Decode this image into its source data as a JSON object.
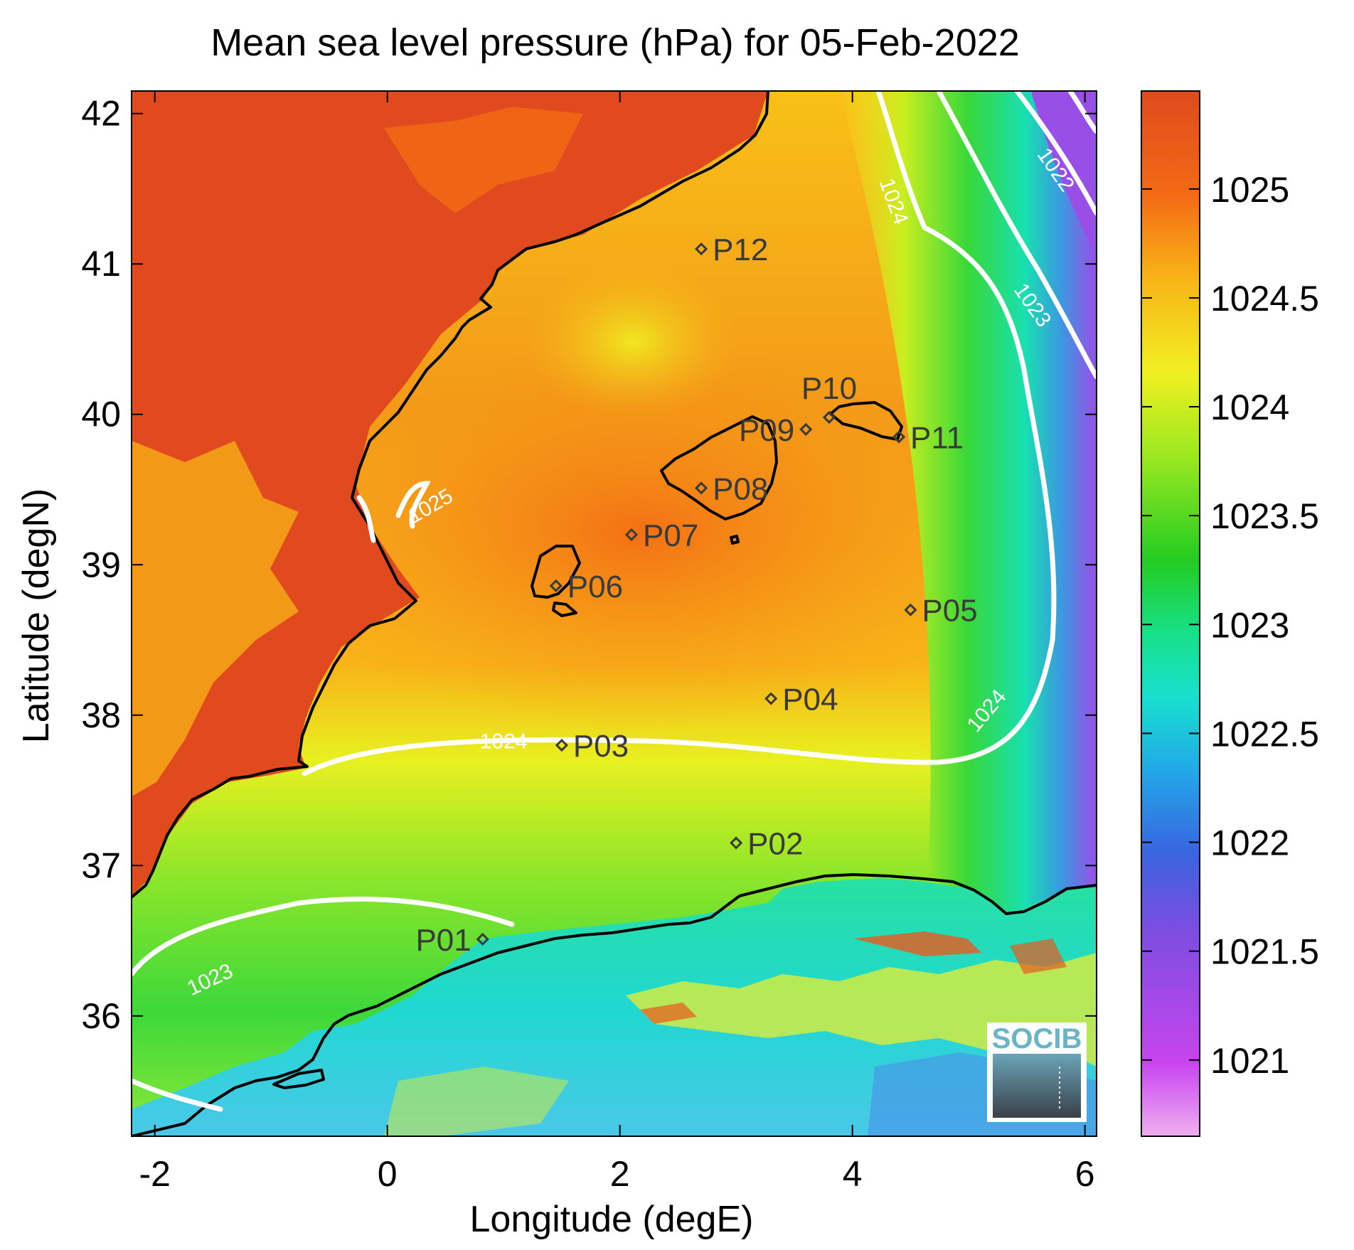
{
  "title": "Mean sea level pressure (hPa) for 05-Feb-2022",
  "xlabel": "Longitude (degE)",
  "ylabel": "Latitude (degN)",
  "x_ticks": [
    "-2",
    "0",
    "2",
    "4",
    "6"
  ],
  "y_ticks": [
    "36",
    "37",
    "38",
    "39",
    "40",
    "41",
    "42"
  ],
  "colorbar": {
    "ticks": [
      "1021",
      "1021.5",
      "1022",
      "1022.5",
      "1023",
      "1023.5",
      "1024",
      "1024.5",
      "1025"
    ],
    "range": [
      1020.65,
      1025.45
    ],
    "colormap": [
      "#f0b0f0",
      "#c844f0",
      "#7a4ee0",
      "#3a64e0",
      "#22a8e8",
      "#18e0d0",
      "#18e08a",
      "#22cc22",
      "#9ae820",
      "#f0f020",
      "#f8b418",
      "#f46a14",
      "#e04a1e"
    ]
  },
  "stations": [
    {
      "name": "P01",
      "lon": 0.82,
      "lat": 36.51
    },
    {
      "name": "P02",
      "lon": 3.0,
      "lat": 37.15
    },
    {
      "name": "P03",
      "lon": 1.5,
      "lat": 37.8
    },
    {
      "name": "P04",
      "lon": 3.3,
      "lat": 38.11
    },
    {
      "name": "P05",
      "lon": 4.5,
      "lat": 38.7
    },
    {
      "name": "P06",
      "lon": 1.45,
      "lat": 38.86
    },
    {
      "name": "P07",
      "lon": 2.1,
      "lat": 39.2
    },
    {
      "name": "P08",
      "lon": 2.7,
      "lat": 39.51
    },
    {
      "name": "P09",
      "lon": 3.6,
      "lat": 39.9
    },
    {
      "name": "P10",
      "lon": 3.8,
      "lat": 39.98
    },
    {
      "name": "P11",
      "lon": 4.4,
      "lat": 39.85
    },
    {
      "name": "P12",
      "lon": 2.7,
      "lat": 41.1
    }
  ],
  "contour_labels": [
    {
      "text": "1025",
      "lon": 0.4,
      "lat": 39.35
    },
    {
      "text": "1024",
      "lon": 1.0,
      "lat": 37.78
    },
    {
      "text": "1024",
      "lon": 5.2,
      "lat": 38.0
    },
    {
      "text": "1024",
      "lon": 4.3,
      "lat": 41.4
    },
    {
      "text": "1023",
      "lon": -1.5,
      "lat": 36.2
    },
    {
      "text": "1023",
      "lon": 5.5,
      "lat": 40.7
    },
    {
      "text": "1022",
      "lon": 5.7,
      "lat": 41.6
    }
  ],
  "logo": {
    "text": "SOCIB"
  }
}
